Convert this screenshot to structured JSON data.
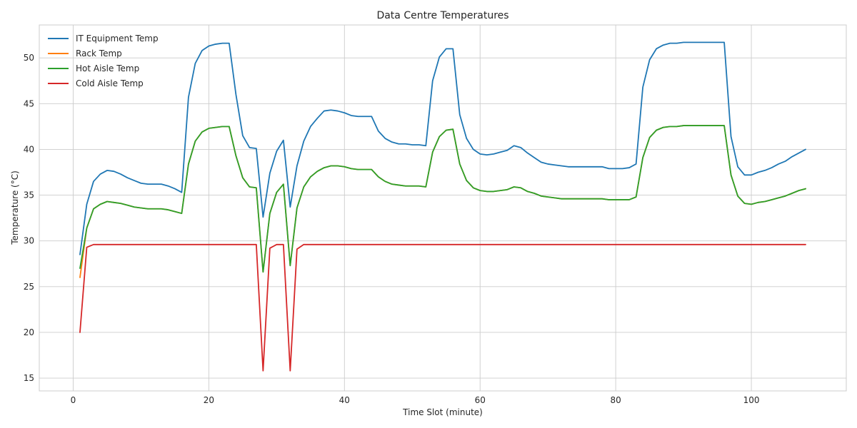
{
  "chart_data": {
    "type": "line",
    "title": "Data Centre Temperatures",
    "xlabel": "Time Slot (minute)",
    "ylabel": "Temperature (°C)",
    "xlim": [
      -5,
      114
    ],
    "ylim": [
      13.6,
      53.6
    ],
    "xticks": [
      0,
      20,
      40,
      60,
      80,
      100
    ],
    "yticks": [
      15,
      20,
      25,
      30,
      35,
      40,
      45,
      50
    ],
    "grid": true,
    "legend_position": "top-left",
    "x": [
      1,
      2,
      3,
      4,
      5,
      6,
      7,
      8,
      9,
      10,
      11,
      12,
      13,
      14,
      15,
      16,
      17,
      18,
      19,
      20,
      21,
      22,
      23,
      24,
      25,
      26,
      27,
      28,
      29,
      30,
      31,
      32,
      33,
      34,
      35,
      36,
      37,
      38,
      39,
      40,
      41,
      42,
      43,
      44,
      45,
      46,
      47,
      48,
      49,
      50,
      51,
      52,
      53,
      54,
      55,
      56,
      57,
      58,
      59,
      60,
      61,
      62,
      63,
      64,
      65,
      66,
      67,
      68,
      69,
      70,
      71,
      72,
      73,
      74,
      75,
      76,
      77,
      78,
      79,
      80,
      81,
      82,
      83,
      84,
      85,
      86,
      87,
      88,
      89,
      90,
      91,
      92,
      93,
      94,
      95,
      96,
      97,
      98,
      99,
      100,
      101,
      102,
      103,
      104,
      105,
      106,
      107,
      108
    ],
    "series": [
      {
        "name": "IT Equipment Temp",
        "color": "#1f77b4",
        "values": [
          28.5,
          34.0,
          36.5,
          37.3,
          37.7,
          37.6,
          37.3,
          36.9,
          36.6,
          36.3,
          36.2,
          36.2,
          36.2,
          36.0,
          35.7,
          35.3,
          45.7,
          49.4,
          50.8,
          51.3,
          51.5,
          51.6,
          51.6,
          46.0,
          41.5,
          40.2,
          40.1,
          32.6,
          37.4,
          39.8,
          41.0,
          33.7,
          38.2,
          40.9,
          42.5,
          43.4,
          44.2,
          44.3,
          44.2,
          44.0,
          43.7,
          43.6,
          43.6,
          43.6,
          42.0,
          41.2,
          40.8,
          40.6,
          40.6,
          40.5,
          40.5,
          40.4,
          47.5,
          50.1,
          51.0,
          51.0,
          43.8,
          41.2,
          40.0,
          39.5,
          39.4,
          39.5,
          39.7,
          39.9,
          40.4,
          40.2,
          39.6,
          39.1,
          38.6,
          38.4,
          38.3,
          38.2,
          38.1,
          38.1,
          38.1,
          38.1,
          38.1,
          38.1,
          37.9,
          37.9,
          37.9,
          38.0,
          38.4,
          46.8,
          49.8,
          51.0,
          51.4,
          51.6,
          51.6,
          51.7,
          51.7,
          51.7,
          51.7,
          51.7,
          51.7,
          51.7,
          41.4,
          38.1,
          37.2,
          37.2,
          37.5,
          37.7,
          38.0,
          38.4,
          38.7,
          39.2,
          39.6,
          40.0
        ]
      },
      {
        "name": "Rack Temp",
        "color": "#ff7f0e",
        "values": [
          26.0,
          31.4,
          33.5,
          34.0,
          34.3,
          34.2,
          34.1,
          33.9,
          33.7,
          33.6,
          33.5,
          33.5,
          33.5,
          33.4,
          33.2,
          33.0,
          38.4,
          40.9,
          41.9,
          42.3,
          42.4,
          42.5,
          42.5,
          39.3,
          36.9,
          35.9,
          35.8,
          26.6,
          33.0,
          35.3,
          36.2,
          27.3,
          33.6,
          35.9,
          37.0,
          37.6,
          38.0,
          38.2,
          38.2,
          38.1,
          37.9,
          37.8,
          37.8,
          37.8,
          37.0,
          36.5,
          36.2,
          36.1,
          36.0,
          36.0,
          36.0,
          35.9,
          39.7,
          41.4,
          42.1,
          42.2,
          38.4,
          36.6,
          35.8,
          35.5,
          35.4,
          35.4,
          35.5,
          35.6,
          35.9,
          35.8,
          35.4,
          35.2,
          34.9,
          34.8,
          34.7,
          34.6,
          34.6,
          34.6,
          34.6,
          34.6,
          34.6,
          34.6,
          34.5,
          34.5,
          34.5,
          34.5,
          34.8,
          39.1,
          41.3,
          42.1,
          42.4,
          42.5,
          42.5,
          42.6,
          42.6,
          42.6,
          42.6,
          42.6,
          42.6,
          42.6,
          37.2,
          34.9,
          34.1,
          34.0,
          34.2,
          34.3,
          34.5,
          34.7,
          34.9,
          35.2,
          35.5,
          35.7
        ]
      },
      {
        "name": "Hot Aisle Temp",
        "color": "#2ca02c",
        "values": [
          27.0,
          31.4,
          33.5,
          34.0,
          34.3,
          34.2,
          34.1,
          33.9,
          33.7,
          33.6,
          33.5,
          33.5,
          33.5,
          33.4,
          33.2,
          33.0,
          38.4,
          40.9,
          41.9,
          42.3,
          42.4,
          42.5,
          42.5,
          39.3,
          36.9,
          35.9,
          35.8,
          26.6,
          33.0,
          35.3,
          36.2,
          27.3,
          33.6,
          35.9,
          37.0,
          37.6,
          38.0,
          38.2,
          38.2,
          38.1,
          37.9,
          37.8,
          37.8,
          37.8,
          37.0,
          36.5,
          36.2,
          36.1,
          36.0,
          36.0,
          36.0,
          35.9,
          39.7,
          41.4,
          42.1,
          42.2,
          38.4,
          36.6,
          35.8,
          35.5,
          35.4,
          35.4,
          35.5,
          35.6,
          35.9,
          35.8,
          35.4,
          35.2,
          34.9,
          34.8,
          34.7,
          34.6,
          34.6,
          34.6,
          34.6,
          34.6,
          34.6,
          34.6,
          34.5,
          34.5,
          34.5,
          34.5,
          34.8,
          39.1,
          41.3,
          42.1,
          42.4,
          42.5,
          42.5,
          42.6,
          42.6,
          42.6,
          42.6,
          42.6,
          42.6,
          42.6,
          37.2,
          34.9,
          34.1,
          34.0,
          34.2,
          34.3,
          34.5,
          34.7,
          34.9,
          35.2,
          35.5,
          35.7
        ]
      },
      {
        "name": "Cold Aisle Temp",
        "color": "#d62728",
        "values": [
          20.0,
          29.3,
          29.6,
          29.6,
          29.6,
          29.6,
          29.6,
          29.6,
          29.6,
          29.6,
          29.6,
          29.6,
          29.6,
          29.6,
          29.6,
          29.6,
          29.6,
          29.6,
          29.6,
          29.6,
          29.6,
          29.6,
          29.6,
          29.6,
          29.6,
          29.6,
          29.6,
          15.8,
          29.2,
          29.6,
          29.6,
          15.8,
          29.1,
          29.6,
          29.6,
          29.6,
          29.6,
          29.6,
          29.6,
          29.6,
          29.6,
          29.6,
          29.6,
          29.6,
          29.6,
          29.6,
          29.6,
          29.6,
          29.6,
          29.6,
          29.6,
          29.6,
          29.6,
          29.6,
          29.6,
          29.6,
          29.6,
          29.6,
          29.6,
          29.6,
          29.6,
          29.6,
          29.6,
          29.6,
          29.6,
          29.6,
          29.6,
          29.6,
          29.6,
          29.6,
          29.6,
          29.6,
          29.6,
          29.6,
          29.6,
          29.6,
          29.6,
          29.6,
          29.6,
          29.6,
          29.6,
          29.6,
          29.6,
          29.6,
          29.6,
          29.6,
          29.6,
          29.6,
          29.6,
          29.6,
          29.6,
          29.6,
          29.6,
          29.6,
          29.6,
          29.6,
          29.6,
          29.6,
          29.6,
          29.6,
          29.6,
          29.6,
          29.6,
          29.6,
          29.6,
          29.6,
          29.6,
          29.6
        ]
      }
    ]
  }
}
